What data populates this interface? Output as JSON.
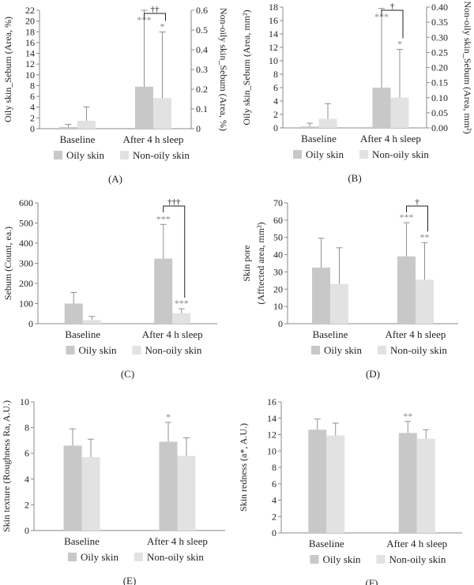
{
  "colors": {
    "oily": "#c8c8c8",
    "nonoily": "#e2e2e2",
    "axis": "#888888",
    "text": "#222222",
    "err": "#909090"
  },
  "chart_data": [
    {
      "type": "bar",
      "letter": "(A)",
      "categories": [
        "Baseline",
        "After 4 h sleep"
      ],
      "series": [
        {
          "name": "Oily skin",
          "axis": "left",
          "values": [
            0.3,
            7.8
          ],
          "errors": [
            0.5,
            14.2
          ],
          "marks": [
            "",
            "***"
          ]
        },
        {
          "name": "Non-oily skin",
          "axis": "right",
          "values": [
            0.04,
            0.155
          ],
          "errors": [
            0.07,
            0.335
          ],
          "marks": [
            "",
            "*"
          ]
        }
      ],
      "ylabel": "Oily skin_Sebum (Area, %)",
      "y2label": "Non-oily skin_Sebum (Area, %)",
      "ylim": [
        0,
        22
      ],
      "yticks": [
        0,
        2,
        4,
        6,
        8,
        10,
        12,
        14,
        16,
        18,
        20,
        22
      ],
      "ytick_labels": [
        "0",
        "2",
        "4",
        "6",
        "8",
        "10",
        "12",
        "14",
        "16",
        "18",
        "20",
        "22"
      ],
      "y2lim": [
        0,
        0.6
      ],
      "y2ticks": [
        0,
        0.1,
        0.2,
        0.3,
        0.4,
        0.5,
        0.6
      ],
      "y2tick_labels": [
        "0",
        "0.1",
        "0.2",
        "0.3",
        "0.4",
        "0.5",
        "0.6"
      ],
      "bracket": "††"
    },
    {
      "type": "bar",
      "letter": "(B)",
      "categories": [
        "Baseline",
        "After 4 h sleep"
      ],
      "series": [
        {
          "name": "Oily skin",
          "axis": "left",
          "values": [
            0.2,
            6.0
          ],
          "errors": [
            0.5,
            11.8
          ],
          "marks": [
            "",
            "***"
          ]
        },
        {
          "name": "Non-oily skin",
          "axis": "right",
          "values": [
            0.03,
            0.1
          ],
          "errors": [
            0.05,
            0.16
          ],
          "marks": [
            "",
            "*"
          ]
        }
      ],
      "ylabel": "Oily skin_Sebum (Area, mm²)",
      "y2label": "Non-oily skin_Sebum (Area, mm²)",
      "ylim": [
        0,
        18
      ],
      "yticks": [
        0,
        2,
        4,
        6,
        8,
        10,
        12,
        14,
        16,
        18
      ],
      "ytick_labels": [
        "0",
        "2",
        "4",
        "6",
        "8",
        "10",
        "12",
        "14",
        "16",
        "18"
      ],
      "y2lim": [
        0,
        0.4
      ],
      "y2ticks": [
        0,
        0.05,
        0.1,
        0.15,
        0.2,
        0.25,
        0.3,
        0.35,
        0.4
      ],
      "y2tick_labels": [
        "0.00",
        "0.05",
        "0.10",
        "0.15",
        "0.20",
        "0.25",
        "0.30",
        "0.35",
        "0.40"
      ],
      "bracket": "†"
    },
    {
      "type": "bar",
      "letter": "(C)",
      "categories": [
        "Baseline",
        "After 4 h sleep"
      ],
      "series": [
        {
          "name": "Oily skin",
          "axis": "left",
          "values": [
            100,
            323
          ],
          "errors": [
            55,
            170
          ],
          "marks": [
            "",
            "***"
          ]
        },
        {
          "name": "Non-oily skin",
          "axis": "left",
          "values": [
            18,
            52
          ],
          "errors": [
            18,
            22
          ],
          "marks": [
            "",
            "***"
          ]
        }
      ],
      "ylabel": "Sebum (Count, ea.)",
      "ylim": [
        0,
        600
      ],
      "yticks": [
        0,
        100,
        200,
        300,
        400,
        500,
        600
      ],
      "ytick_labels": [
        "0",
        "100",
        "200",
        "300",
        "400",
        "500",
        "600"
      ],
      "bracket": "†††"
    },
    {
      "type": "bar",
      "letter": "(D)",
      "categories": [
        "Baseline",
        "After 4 h sleep"
      ],
      "series": [
        {
          "name": "Oily skin",
          "axis": "left",
          "values": [
            32.5,
            39
          ],
          "errors": [
            17,
            19.5
          ],
          "marks": [
            "",
            "***"
          ]
        },
        {
          "name": "Non-oily skin",
          "axis": "left",
          "values": [
            23,
            25.5
          ],
          "errors": [
            21,
            21.5
          ],
          "marks": [
            "",
            "**"
          ]
        }
      ],
      "ylabel": "Skin pore",
      "ylabel2": "(Afftected area, mm²)",
      "ylim": [
        0,
        70
      ],
      "yticks": [
        0,
        10,
        20,
        30,
        40,
        50,
        60,
        70
      ],
      "ytick_labels": [
        "0",
        "10",
        "20",
        "30",
        "40",
        "50",
        "60",
        "70"
      ],
      "bracket": "†"
    },
    {
      "type": "bar",
      "letter": "(E)",
      "categories": [
        "Baseline",
        "After 4 h sleep"
      ],
      "series": [
        {
          "name": "Oily skin",
          "axis": "left",
          "values": [
            6.6,
            6.9
          ],
          "errors": [
            1.3,
            1.5
          ],
          "marks": [
            "",
            "*"
          ]
        },
        {
          "name": "Non-oily skin",
          "axis": "left",
          "values": [
            5.7,
            5.8
          ],
          "errors": [
            1.4,
            1.4
          ],
          "marks": [
            "",
            ""
          ]
        }
      ],
      "ylabel": "Skin texture (Roughness Ra, A.U.)",
      "ylim": [
        0,
        10
      ],
      "yticks": [
        0,
        2,
        4,
        6,
        8,
        10
      ],
      "ytick_labels": [
        "0",
        "2",
        "4",
        "6",
        "8",
        "10"
      ],
      "bracket": ""
    },
    {
      "type": "bar",
      "letter": "(F)",
      "categories": [
        "Baseline",
        "After 4 h sleep"
      ],
      "series": [
        {
          "name": "Oily skin",
          "axis": "left",
          "values": [
            12.6,
            12.2
          ],
          "errors": [
            1.3,
            1.4
          ],
          "marks": [
            "",
            "**"
          ]
        },
        {
          "name": "Non-oily skin",
          "axis": "left",
          "values": [
            11.9,
            11.5
          ],
          "errors": [
            1.5,
            1.1
          ],
          "marks": [
            "",
            ""
          ]
        }
      ],
      "ylabel": "Skin redness (a*, A.U.)",
      "ylim": [
        0,
        16
      ],
      "yticks": [
        0,
        2,
        4,
        6,
        8,
        10,
        12,
        14,
        16
      ],
      "ytick_labels": [
        "0",
        "2",
        "4",
        "6",
        "8",
        "10",
        "12",
        "14",
        "16"
      ],
      "bracket": ""
    }
  ]
}
